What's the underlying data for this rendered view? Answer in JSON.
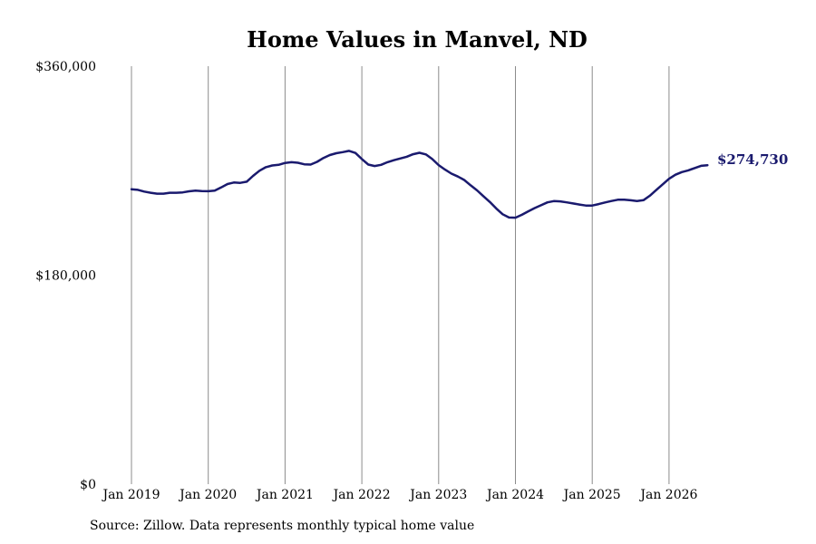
{
  "colors": {
    "line": "#1a1a6e",
    "gridline": "#8c8c8c",
    "text": "#000000",
    "background": "#ffffff"
  },
  "source_note": "Source: Zillow. Data represents monthly typical home value",
  "chart_data": {
    "type": "line",
    "title": "Home Values in Manvel, ND",
    "xlabel": "",
    "ylabel": "",
    "ylim": [
      0,
      360000
    ],
    "y_ticks": [
      0,
      180000,
      360000
    ],
    "y_tick_labels": [
      "$0",
      "$180,000",
      "$360,000"
    ],
    "x_range": [
      "2019-01",
      "2026-07"
    ],
    "x_tick_labels": [
      "Jan 2019",
      "Jan 2020",
      "Jan 2021",
      "Jan 2022",
      "Jan 2023",
      "Jan 2024",
      "Jan 2025",
      "Jan 2026"
    ],
    "x_ticks": [
      "2019-01",
      "2020-01",
      "2021-01",
      "2022-01",
      "2023-01",
      "2024-01",
      "2025-01",
      "2026-01"
    ],
    "vertical_grid": true,
    "horizontal_grid": false,
    "legend": "none",
    "end_label": "$274,730",
    "series": [
      {
        "color": "#1a1a6e",
        "points": [
          [
            "2019-01",
            254000
          ],
          [
            "2019-02",
            253500
          ],
          [
            "2019-03",
            252000
          ],
          [
            "2019-04",
            251000
          ],
          [
            "2019-05",
            250200
          ],
          [
            "2019-06",
            250200
          ],
          [
            "2019-07",
            251000
          ],
          [
            "2019-08",
            251000
          ],
          [
            "2019-09",
            251300
          ],
          [
            "2019-10",
            252200
          ],
          [
            "2019-11",
            252800
          ],
          [
            "2019-12",
            252500
          ],
          [
            "2020-01",
            252300
          ],
          [
            "2020-02",
            252800
          ],
          [
            "2020-03",
            255500
          ],
          [
            "2020-04",
            258500
          ],
          [
            "2020-05",
            259800
          ],
          [
            "2020-06",
            259500
          ],
          [
            "2020-07",
            260500
          ],
          [
            "2020-08",
            265500
          ],
          [
            "2020-09",
            270000
          ],
          [
            "2020-10",
            273000
          ],
          [
            "2020-11",
            274500
          ],
          [
            "2020-12",
            275000
          ],
          [
            "2021-01",
            276700
          ],
          [
            "2021-02",
            277300
          ],
          [
            "2021-03",
            276800
          ],
          [
            "2021-04",
            275500
          ],
          [
            "2021-05",
            275300
          ],
          [
            "2021-06",
            277600
          ],
          [
            "2021-07",
            281000
          ],
          [
            "2021-08",
            283500
          ],
          [
            "2021-09",
            285000
          ],
          [
            "2021-10",
            286000
          ],
          [
            "2021-11",
            287100
          ],
          [
            "2021-12",
            285300
          ],
          [
            "2022-01",
            280000
          ],
          [
            "2022-02",
            275300
          ],
          [
            "2022-03",
            274000
          ],
          [
            "2022-04",
            275000
          ],
          [
            "2022-05",
            277300
          ],
          [
            "2022-06",
            279000
          ],
          [
            "2022-07",
            280500
          ],
          [
            "2022-08",
            282000
          ],
          [
            "2022-09",
            284200
          ],
          [
            "2022-10",
            285400
          ],
          [
            "2022-11",
            284000
          ],
          [
            "2022-12",
            280000
          ],
          [
            "2023-01",
            274800
          ],
          [
            "2023-02",
            270900
          ],
          [
            "2023-03",
            267500
          ],
          [
            "2023-04",
            265000
          ],
          [
            "2023-05",
            262000
          ],
          [
            "2023-06",
            257400
          ],
          [
            "2023-07",
            253000
          ],
          [
            "2023-08",
            248000
          ],
          [
            "2023-09",
            243000
          ],
          [
            "2023-10",
            237500
          ],
          [
            "2023-11",
            232500
          ],
          [
            "2023-12",
            229700
          ],
          [
            "2024-01",
            229500
          ],
          [
            "2024-02",
            232000
          ],
          [
            "2024-03",
            235000
          ],
          [
            "2024-04",
            237800
          ],
          [
            "2024-05",
            240200
          ],
          [
            "2024-06",
            242700
          ],
          [
            "2024-07",
            243800
          ],
          [
            "2024-08",
            243600
          ],
          [
            "2024-09",
            242700
          ],
          [
            "2024-10",
            241800
          ],
          [
            "2024-11",
            240800
          ],
          [
            "2024-12",
            240000
          ],
          [
            "2025-01",
            240000
          ],
          [
            "2025-02",
            241200
          ],
          [
            "2025-03",
            242600
          ],
          [
            "2025-04",
            243900
          ],
          [
            "2025-05",
            245000
          ],
          [
            "2025-06",
            245000
          ],
          [
            "2025-07",
            244500
          ],
          [
            "2025-08",
            243800
          ],
          [
            "2025-09",
            244600
          ],
          [
            "2025-10",
            248400
          ],
          [
            "2025-11",
            253300
          ],
          [
            "2025-12",
            258200
          ],
          [
            "2026-01",
            263000
          ],
          [
            "2026-02",
            266500
          ],
          [
            "2026-03",
            268800
          ],
          [
            "2026-04",
            270300
          ],
          [
            "2026-05",
            272200
          ],
          [
            "2026-06",
            274200
          ],
          [
            "2026-07",
            274730
          ]
        ]
      }
    ]
  }
}
